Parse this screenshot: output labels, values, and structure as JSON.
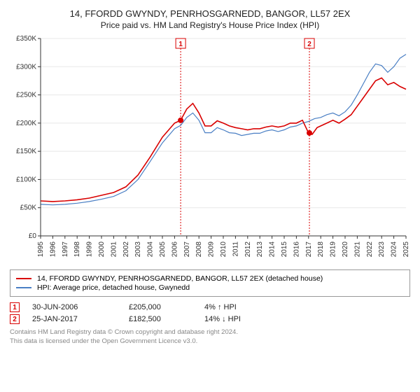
{
  "title": "14, FFORDD GWYNDY, PENRHOSGARNEDD, BANGOR, LL57 2EX",
  "subtitle": "Price paid vs. HM Land Registry's House Price Index (HPI)",
  "chart": {
    "type": "line",
    "ylim": [
      0,
      350000
    ],
    "ytick_step": 50000,
    "ytick_labels": [
      "£0",
      "£50K",
      "£100K",
      "£150K",
      "£200K",
      "£250K",
      "£300K",
      "£350K"
    ],
    "xlim": [
      1995,
      2025
    ],
    "xticks": [
      1995,
      1996,
      1997,
      1998,
      1999,
      2000,
      2001,
      2002,
      2003,
      2004,
      2005,
      2006,
      2007,
      2008,
      2009,
      2010,
      2011,
      2012,
      2013,
      2014,
      2015,
      2016,
      2017,
      2018,
      2019,
      2020,
      2021,
      2022,
      2023,
      2024,
      2025
    ],
    "background_color": "#ffffff",
    "grid_color": "#e8e8e8",
    "series": {
      "red": {
        "color": "#d90000",
        "width": 1.6,
        "label": "14, FFORDD GWYNDY, PENRHOSGARNEDD, BANGOR, LL57 2EX (detached house)",
        "points": [
          [
            1995,
            62000
          ],
          [
            1996,
            61000
          ],
          [
            1997,
            62000
          ],
          [
            1998,
            64000
          ],
          [
            1999,
            67000
          ],
          [
            2000,
            72000
          ],
          [
            2001,
            77000
          ],
          [
            2002,
            87000
          ],
          [
            2003,
            108000
          ],
          [
            2004,
            140000
          ],
          [
            2005,
            175000
          ],
          [
            2006,
            200000
          ],
          [
            2006.5,
            205000
          ],
          [
            2007,
            225000
          ],
          [
            2007.5,
            235000
          ],
          [
            2008,
            218000
          ],
          [
            2008.5,
            195000
          ],
          [
            2009,
            195000
          ],
          [
            2009.5,
            204000
          ],
          [
            2010,
            200000
          ],
          [
            2010.5,
            195000
          ],
          [
            2011,
            192000
          ],
          [
            2011.5,
            190000
          ],
          [
            2012,
            188000
          ],
          [
            2012.5,
            190000
          ],
          [
            2013,
            190000
          ],
          [
            2013.5,
            193000
          ],
          [
            2014,
            195000
          ],
          [
            2014.5,
            193000
          ],
          [
            2015,
            195000
          ],
          [
            2015.5,
            200000
          ],
          [
            2016,
            200000
          ],
          [
            2016.5,
            205000
          ],
          [
            2017,
            182500
          ],
          [
            2017.3,
            180000
          ],
          [
            2017.7,
            192000
          ],
          [
            2018,
            195000
          ],
          [
            2018.5,
            200000
          ],
          [
            2019,
            205000
          ],
          [
            2019.5,
            200000
          ],
          [
            2020,
            207000
          ],
          [
            2020.5,
            215000
          ],
          [
            2021,
            230000
          ],
          [
            2021.5,
            245000
          ],
          [
            2022,
            260000
          ],
          [
            2022.5,
            275000
          ],
          [
            2023,
            280000
          ],
          [
            2023.5,
            268000
          ],
          [
            2024,
            272000
          ],
          [
            2024.5,
            265000
          ],
          [
            2025,
            260000
          ]
        ]
      },
      "blue": {
        "color": "#4a7fc4",
        "width": 1.2,
        "label": "HPI: Average price, detached house, Gwynedd",
        "points": [
          [
            1995,
            56000
          ],
          [
            1996,
            55000
          ],
          [
            1997,
            56000
          ],
          [
            1998,
            58000
          ],
          [
            1999,
            61000
          ],
          [
            2000,
            65000
          ],
          [
            2001,
            70000
          ],
          [
            2002,
            80000
          ],
          [
            2003,
            100000
          ],
          [
            2004,
            132000
          ],
          [
            2005,
            165000
          ],
          [
            2006,
            190000
          ],
          [
            2006.5,
            196000
          ],
          [
            2007,
            210000
          ],
          [
            2007.5,
            218000
          ],
          [
            2008,
            205000
          ],
          [
            2008.5,
            183000
          ],
          [
            2009,
            183000
          ],
          [
            2009.5,
            192000
          ],
          [
            2010,
            188000
          ],
          [
            2010.5,
            183000
          ],
          [
            2011,
            182000
          ],
          [
            2011.5,
            178000
          ],
          [
            2012,
            180000
          ],
          [
            2012.5,
            182000
          ],
          [
            2013,
            182000
          ],
          [
            2013.5,
            186000
          ],
          [
            2014,
            188000
          ],
          [
            2014.5,
            185000
          ],
          [
            2015,
            188000
          ],
          [
            2015.5,
            193000
          ],
          [
            2016,
            195000
          ],
          [
            2016.5,
            200000
          ],
          [
            2017,
            203000
          ],
          [
            2017.5,
            208000
          ],
          [
            2018,
            210000
          ],
          [
            2018.5,
            215000
          ],
          [
            2019,
            218000
          ],
          [
            2019.5,
            213000
          ],
          [
            2020,
            220000
          ],
          [
            2020.5,
            232000
          ],
          [
            2021,
            250000
          ],
          [
            2021.5,
            270000
          ],
          [
            2022,
            290000
          ],
          [
            2022.5,
            305000
          ],
          [
            2023,
            302000
          ],
          [
            2023.5,
            290000
          ],
          [
            2024,
            300000
          ],
          [
            2024.5,
            315000
          ],
          [
            2025,
            322000
          ]
        ]
      }
    },
    "markers": [
      {
        "idx": "1",
        "x": 2006.5,
        "y": 205000
      },
      {
        "idx": "2",
        "x": 2017.07,
        "y": 182500
      }
    ]
  },
  "legend": {
    "items": [
      {
        "key": "red"
      },
      {
        "key": "blue"
      }
    ]
  },
  "transactions": [
    {
      "idx": "1",
      "date": "30-JUN-2006",
      "price": "£205,000",
      "pct": "4% ↑ HPI"
    },
    {
      "idx": "2",
      "date": "25-JAN-2017",
      "price": "£182,500",
      "pct": "14% ↓ HPI"
    }
  ],
  "footer": {
    "l1": "Contains HM Land Registry data © Crown copyright and database right 2024.",
    "l2": "This data is licensed under the Open Government Licence v3.0."
  }
}
